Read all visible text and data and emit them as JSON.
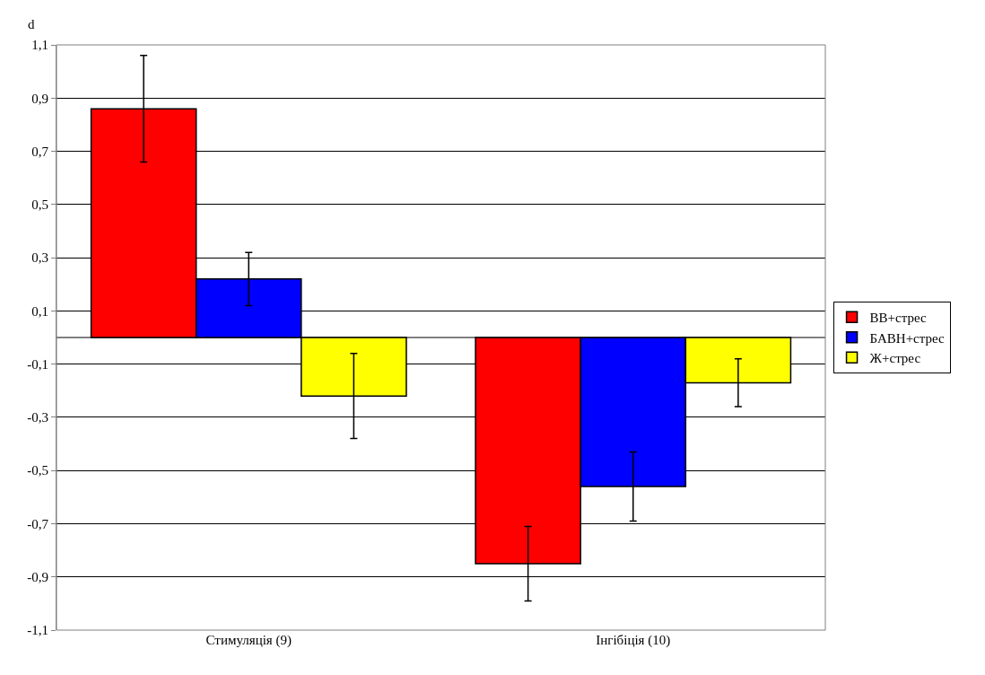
{
  "chart_data": {
    "type": "bar",
    "ylabel": "d",
    "categories": [
      "Стимуляція (9)",
      "Інгібіція (10)"
    ],
    "series": [
      {
        "name": "ВВ+стрес",
        "color": "#ff0000",
        "values": [
          0.86,
          -0.85
        ],
        "errors": [
          0.2,
          0.14
        ]
      },
      {
        "name": "БАВН+стрес",
        "color": "#0000ff",
        "values": [
          0.22,
          -0.56
        ],
        "errors": [
          0.1,
          0.13
        ]
      },
      {
        "name": "Ж+стрес",
        "color": "#ffff00",
        "values": [
          -0.22,
          -0.17
        ],
        "errors": [
          0.16,
          0.09
        ]
      }
    ],
    "ylim": [
      -1.1,
      1.1
    ],
    "yticks": [
      {
        "value": -1.1,
        "label": "-1,1"
      },
      {
        "value": -0.9,
        "label": "-0,9"
      },
      {
        "value": -0.7,
        "label": "-0,7"
      },
      {
        "value": -0.5,
        "label": "-0,5"
      },
      {
        "value": -0.3,
        "label": "-0,3"
      },
      {
        "value": -0.1,
        "label": "-0,1"
      },
      {
        "value": 0.1,
        "label": "0,1"
      },
      {
        "value": 0.3,
        "label": "0,3"
      },
      {
        "value": 0.5,
        "label": "0,5"
      },
      {
        "value": 0.7,
        "label": "0,7"
      },
      {
        "value": 0.9,
        "label": "0,9"
      },
      {
        "value": 1.1,
        "label": "1,1"
      }
    ],
    "grid": "y",
    "legend": "right"
  }
}
